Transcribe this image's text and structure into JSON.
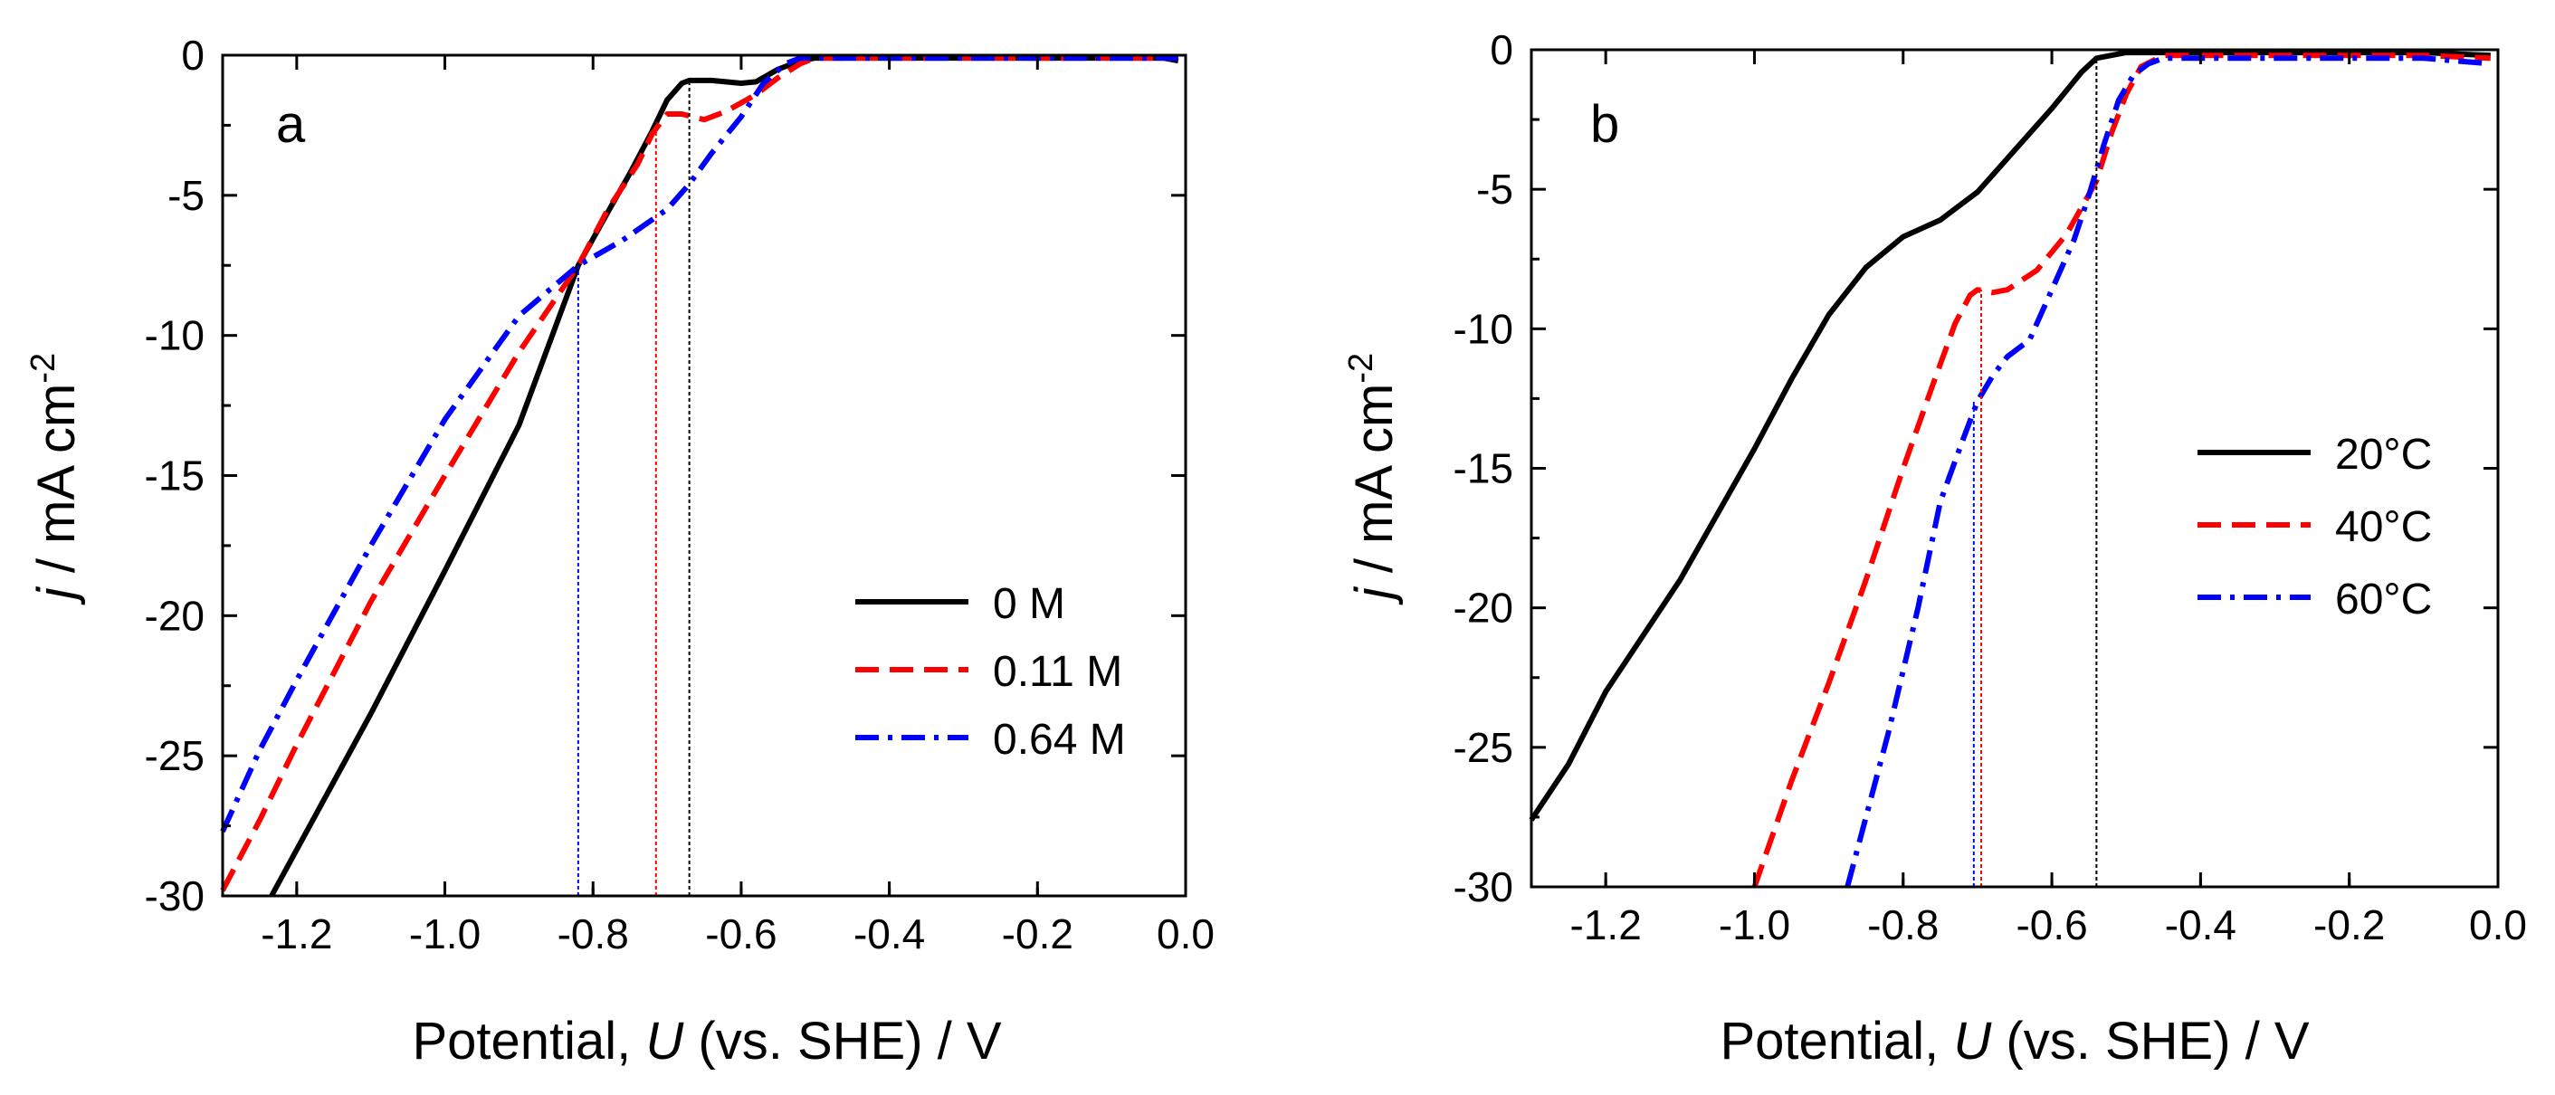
{
  "chart_data": [
    {
      "type": "line",
      "panel_label": "a",
      "xlabel": {
        "prefix": "Potential, ",
        "symbol": "U",
        "suffix": " (vs. SHE) / V"
      },
      "ylabel": {
        "symbol": "j",
        "unit": " / mA cm",
        "exponent": "-2"
      },
      "xlim": [
        -1.3,
        0.0
      ],
      "ylim": [
        -30,
        0
      ],
      "xticks": [
        -1.2,
        -1.0,
        -0.8,
        -0.6,
        -0.4,
        -0.2,
        0.0
      ],
      "xtick_labels": [
        "-1.2",
        "-1.0",
        "-0.8",
        "-0.6",
        "-0.4",
        "-0.2",
        "0.0"
      ],
      "yticks": [
        0,
        -5,
        -10,
        -15,
        -20,
        -25,
        -30
      ],
      "ytick_labels": [
        "0",
        "-5",
        "-10",
        "-15",
        "-20",
        "-25",
        "-30"
      ],
      "grid": false,
      "legend_position": "bottom-right",
      "series": [
        {
          "name": "0 M",
          "color": "#000000",
          "style": "solid",
          "x": [
            -1.234,
            -1.1,
            -1.0,
            -0.9,
            -0.82,
            -0.78,
            -0.75,
            -0.72,
            -0.7,
            -0.68,
            -0.67,
            -0.64,
            -0.6,
            -0.58,
            -0.55,
            -0.52,
            -0.5,
            -0.3,
            -0.1,
            -0.03,
            -0.01
          ],
          "y": [
            -30,
            -23.5,
            -18.4,
            -13.2,
            -7.5,
            -5.6,
            -4.2,
            -2.7,
            -1.6,
            -1.0,
            -0.9,
            -0.9,
            -1.0,
            -0.95,
            -0.5,
            -0.2,
            -0.1,
            -0.1,
            -0.1,
            -0.1,
            -0.2
          ]
        },
        {
          "name": "0.11 M",
          "color": "#ff0000",
          "style": "dashed",
          "x": [
            -1.3,
            -1.25,
            -1.2,
            -1.1,
            -1.0,
            -0.9,
            -0.82,
            -0.78,
            -0.74,
            -0.72,
            -0.7,
            -0.68,
            -0.65,
            -0.62,
            -0.58,
            -0.55,
            -0.52,
            -0.5,
            -0.3,
            -0.1,
            -0.01
          ],
          "y": [
            -29.8,
            -27.3,
            -24.6,
            -19.5,
            -15.0,
            -10.6,
            -7.5,
            -5.5,
            -3.9,
            -2.8,
            -2.1,
            -2.1,
            -2.3,
            -2.0,
            -1.4,
            -0.8,
            -0.3,
            -0.1,
            -0.1,
            -0.1,
            -0.1
          ]
        },
        {
          "name": "0.64 M",
          "color": "#0000ff",
          "style": "dashdot",
          "x": [
            -1.3,
            -1.25,
            -1.2,
            -1.1,
            -1.0,
            -0.9,
            -0.82,
            -0.76,
            -0.7,
            -0.67,
            -0.64,
            -0.6,
            -0.57,
            -0.54,
            -0.52,
            -0.5,
            -0.3,
            -0.1,
            -0.01
          ],
          "y": [
            -27.7,
            -24.8,
            -22.3,
            -17.5,
            -13.0,
            -9.3,
            -7.5,
            -6.6,
            -5.5,
            -4.6,
            -3.5,
            -2.2,
            -1.0,
            -0.3,
            -0.1,
            -0.1,
            -0.1,
            -0.1,
            -0.1
          ]
        }
      ],
      "markers": [
        {
          "x": -0.82,
          "y0": -30,
          "y1": -7.5,
          "color": "#0000ff"
        },
        {
          "x": -0.715,
          "y0": -30,
          "y1": -2.4,
          "color": "#ff0000"
        },
        {
          "x": -0.67,
          "y0": -30,
          "y1": -1.0,
          "color": "#000000"
        }
      ]
    },
    {
      "type": "line",
      "panel_label": "b",
      "xlabel": {
        "prefix": "Potential, ",
        "symbol": "U",
        "suffix": " (vs. SHE) / V"
      },
      "ylabel": {
        "symbol": "j",
        "unit": " / mA cm",
        "exponent": "-2"
      },
      "xlim": [
        -1.3,
        0.0
      ],
      "ylim": [
        -30,
        0
      ],
      "xticks": [
        -1.2,
        -1.0,
        -0.8,
        -0.6,
        -0.4,
        -0.2,
        0.0
      ],
      "xtick_labels": [
        "-1.2",
        "-1.0",
        "-0.8",
        "-0.6",
        "-0.4",
        "-0.2",
        "0.0"
      ],
      "yticks": [
        0,
        -5,
        -10,
        -15,
        -20,
        -25,
        -30
      ],
      "ytick_labels": [
        "0",
        "-5",
        "-10",
        "-15",
        "-20",
        "-25",
        "-30"
      ],
      "grid": false,
      "legend_position": "right",
      "series": [
        {
          "name": "20°C",
          "color": "#000000",
          "style": "solid",
          "x": [
            -1.3,
            -1.25,
            -1.2,
            -1.1,
            -1.0,
            -0.95,
            -0.9,
            -0.85,
            -0.8,
            -0.75,
            -0.7,
            -0.65,
            -0.6,
            -0.56,
            -0.54,
            -0.52,
            -0.5,
            -0.3,
            -0.1,
            -0.01
          ],
          "y": [
            -27.6,
            -25.6,
            -23.0,
            -19.0,
            -14.3,
            -11.8,
            -9.5,
            -7.8,
            -6.7,
            -6.1,
            -5.1,
            -3.6,
            -2.1,
            -0.8,
            -0.3,
            -0.2,
            -0.1,
            -0.1,
            -0.1,
            -0.2
          ]
        },
        {
          "name": "40°C",
          "color": "#ff0000",
          "style": "dashed",
          "x": [
            -1.0,
            -0.95,
            -0.9,
            -0.85,
            -0.8,
            -0.76,
            -0.73,
            -0.71,
            -0.7,
            -0.68,
            -0.66,
            -0.62,
            -0.58,
            -0.54,
            -0.52,
            -0.5,
            -0.48,
            -0.45,
            -0.3,
            -0.1,
            -0.01
          ],
          "y": [
            -30,
            -26.2,
            -22.7,
            -19.0,
            -15.0,
            -12.0,
            -9.8,
            -8.8,
            -8.6,
            -8.7,
            -8.6,
            -7.9,
            -6.6,
            -4.7,
            -3.0,
            -1.6,
            -0.6,
            -0.2,
            -0.2,
            -0.2,
            -0.3
          ]
        },
        {
          "name": "60°C",
          "color": "#0000ff",
          "style": "dashdot",
          "x": [
            -0.875,
            -0.82,
            -0.78,
            -0.75,
            -0.72,
            -0.7,
            -0.68,
            -0.66,
            -0.63,
            -0.6,
            -0.57,
            -0.55,
            -0.53,
            -0.51,
            -0.49,
            -0.47,
            -0.45,
            -0.3,
            -0.1,
            -0.01
          ],
          "y": [
            -30,
            -24.5,
            -20.0,
            -16.2,
            -14.0,
            -12.6,
            -11.7,
            -11.0,
            -10.4,
            -8.6,
            -6.8,
            -5.2,
            -3.4,
            -1.8,
            -0.9,
            -0.5,
            -0.3,
            -0.3,
            -0.3,
            -0.5
          ]
        }
      ],
      "markers": [
        {
          "x": -0.705,
          "y0": -30,
          "y1": -12.6,
          "color": "#0000ff"
        },
        {
          "x": -0.695,
          "y0": -30,
          "y1": -8.6,
          "color": "#ff0000"
        },
        {
          "x": -0.54,
          "y0": -30,
          "y1": -0.3,
          "color": "#000000"
        }
      ]
    }
  ]
}
